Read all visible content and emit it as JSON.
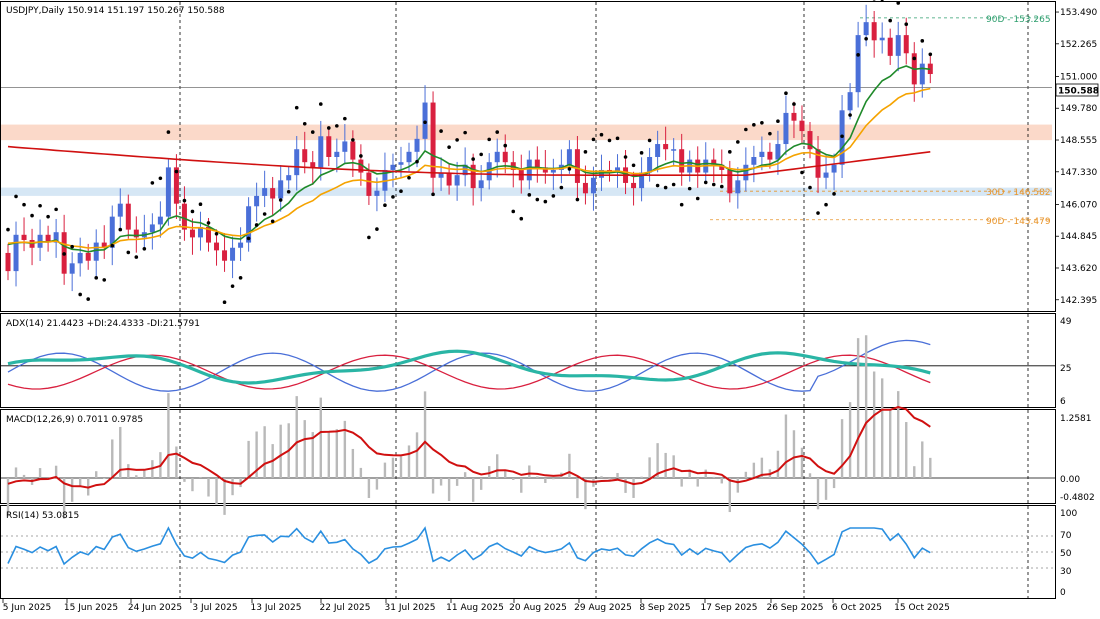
{
  "chart_data": {
    "type": "candlestick",
    "symbol_line": "USDJPY,Daily  150.914 151.197 150.267 150.588",
    "current_price_label": "150.588",
    "price_axis_ticks": [
      "153.490",
      "152.265",
      "151.000",
      "149.780",
      "148.555",
      "147.330",
      "146.070",
      "144.845",
      "143.620",
      "142.395"
    ],
    "price_range": [
      142.0,
      153.8
    ],
    "levels": [
      {
        "label": "90D - 153.265",
        "value": 153.265,
        "color": "#2e9e6e"
      },
      {
        "label": "30D - 146.582",
        "value": 146.582,
        "color": "#e8952c"
      },
      {
        "label": "90D - 145.479",
        "value": 145.479,
        "color": "#e8952c"
      }
    ],
    "zones": [
      {
        "from": 148.55,
        "to": 149.15,
        "color": "#fbd9c9"
      },
      {
        "from": 146.4,
        "to": 146.72,
        "color": "#d6e7f5"
      }
    ],
    "date_labels": [
      "5 Jun 2025",
      "15 Jun 2025",
      "24 Jun 2025",
      "3 Jul 2025",
      "13 Jul 2025",
      "22 Jul 2025",
      "31 Jul 2025",
      "11 Aug 2025",
      "20 Aug 2025",
      "29 Aug 2025",
      "8 Sep 2025",
      "17 Sep 2025",
      "26 Sep 2025",
      "6 Oct 2025",
      "15 Oct 2025"
    ],
    "colors": {
      "bull": "#4a6fd8",
      "bear": "#d9203f",
      "ma_fast": "#1f8a2a",
      "ma_mid": "#f5a300",
      "ma_slow": "#d01010",
      "adx": "#2ab5a5",
      "plus_di": "#4a6fd8",
      "minus_di": "#d9203f",
      "macd_hist": "#b9b9b9",
      "macd_signal": "#d01010",
      "rsi": "#2a8fe0"
    },
    "close": [
      143.5,
      144.9,
      144.7,
      144.4,
      144.9,
      144.6,
      145.0,
      143.4,
      143.8,
      144.2,
      143.9,
      144.6,
      144.4,
      145.6,
      146.1,
      145.1,
      144.8,
      145.0,
      145.3,
      145.6,
      147.5,
      146.1,
      145.1,
      144.8,
      145.2,
      144.6,
      144.3,
      143.9,
      144.4,
      144.6,
      146.0,
      146.4,
      146.7,
      146.3,
      147.0,
      147.2,
      148.2,
      147.7,
      147.5,
      148.7,
      147.9,
      148.1,
      148.5,
      147.8,
      147.3,
      146.4,
      146.6,
      147.4,
      147.6,
      147.7,
      148.1,
      148.6,
      150.0,
      147.1,
      147.3,
      146.8,
      147.2,
      147.6,
      146.7,
      147.0,
      147.7,
      148.1,
      147.7,
      147.4,
      147.0,
      147.8,
      147.5,
      147.3,
      147.4,
      147.6,
      148.2,
      146.9,
      146.5,
      147.1,
      147.4,
      147.3,
      147.5,
      146.9,
      146.7,
      147.3,
      147.9,
      148.4,
      148.2,
      148.2,
      147.3,
      147.8,
      147.3,
      147.8,
      147.6,
      147.4,
      146.5,
      147.0,
      147.6,
      147.9,
      148.1,
      147.8,
      148.4,
      149.6,
      149.3,
      148.9,
      148.2,
      147.1,
      147.3,
      147.6,
      149.7,
      150.4,
      152.6,
      153.1,
      152.4,
      152.5,
      151.8,
      152.6,
      151.9,
      150.7,
      151.5,
      151.1
    ]
  }
}
